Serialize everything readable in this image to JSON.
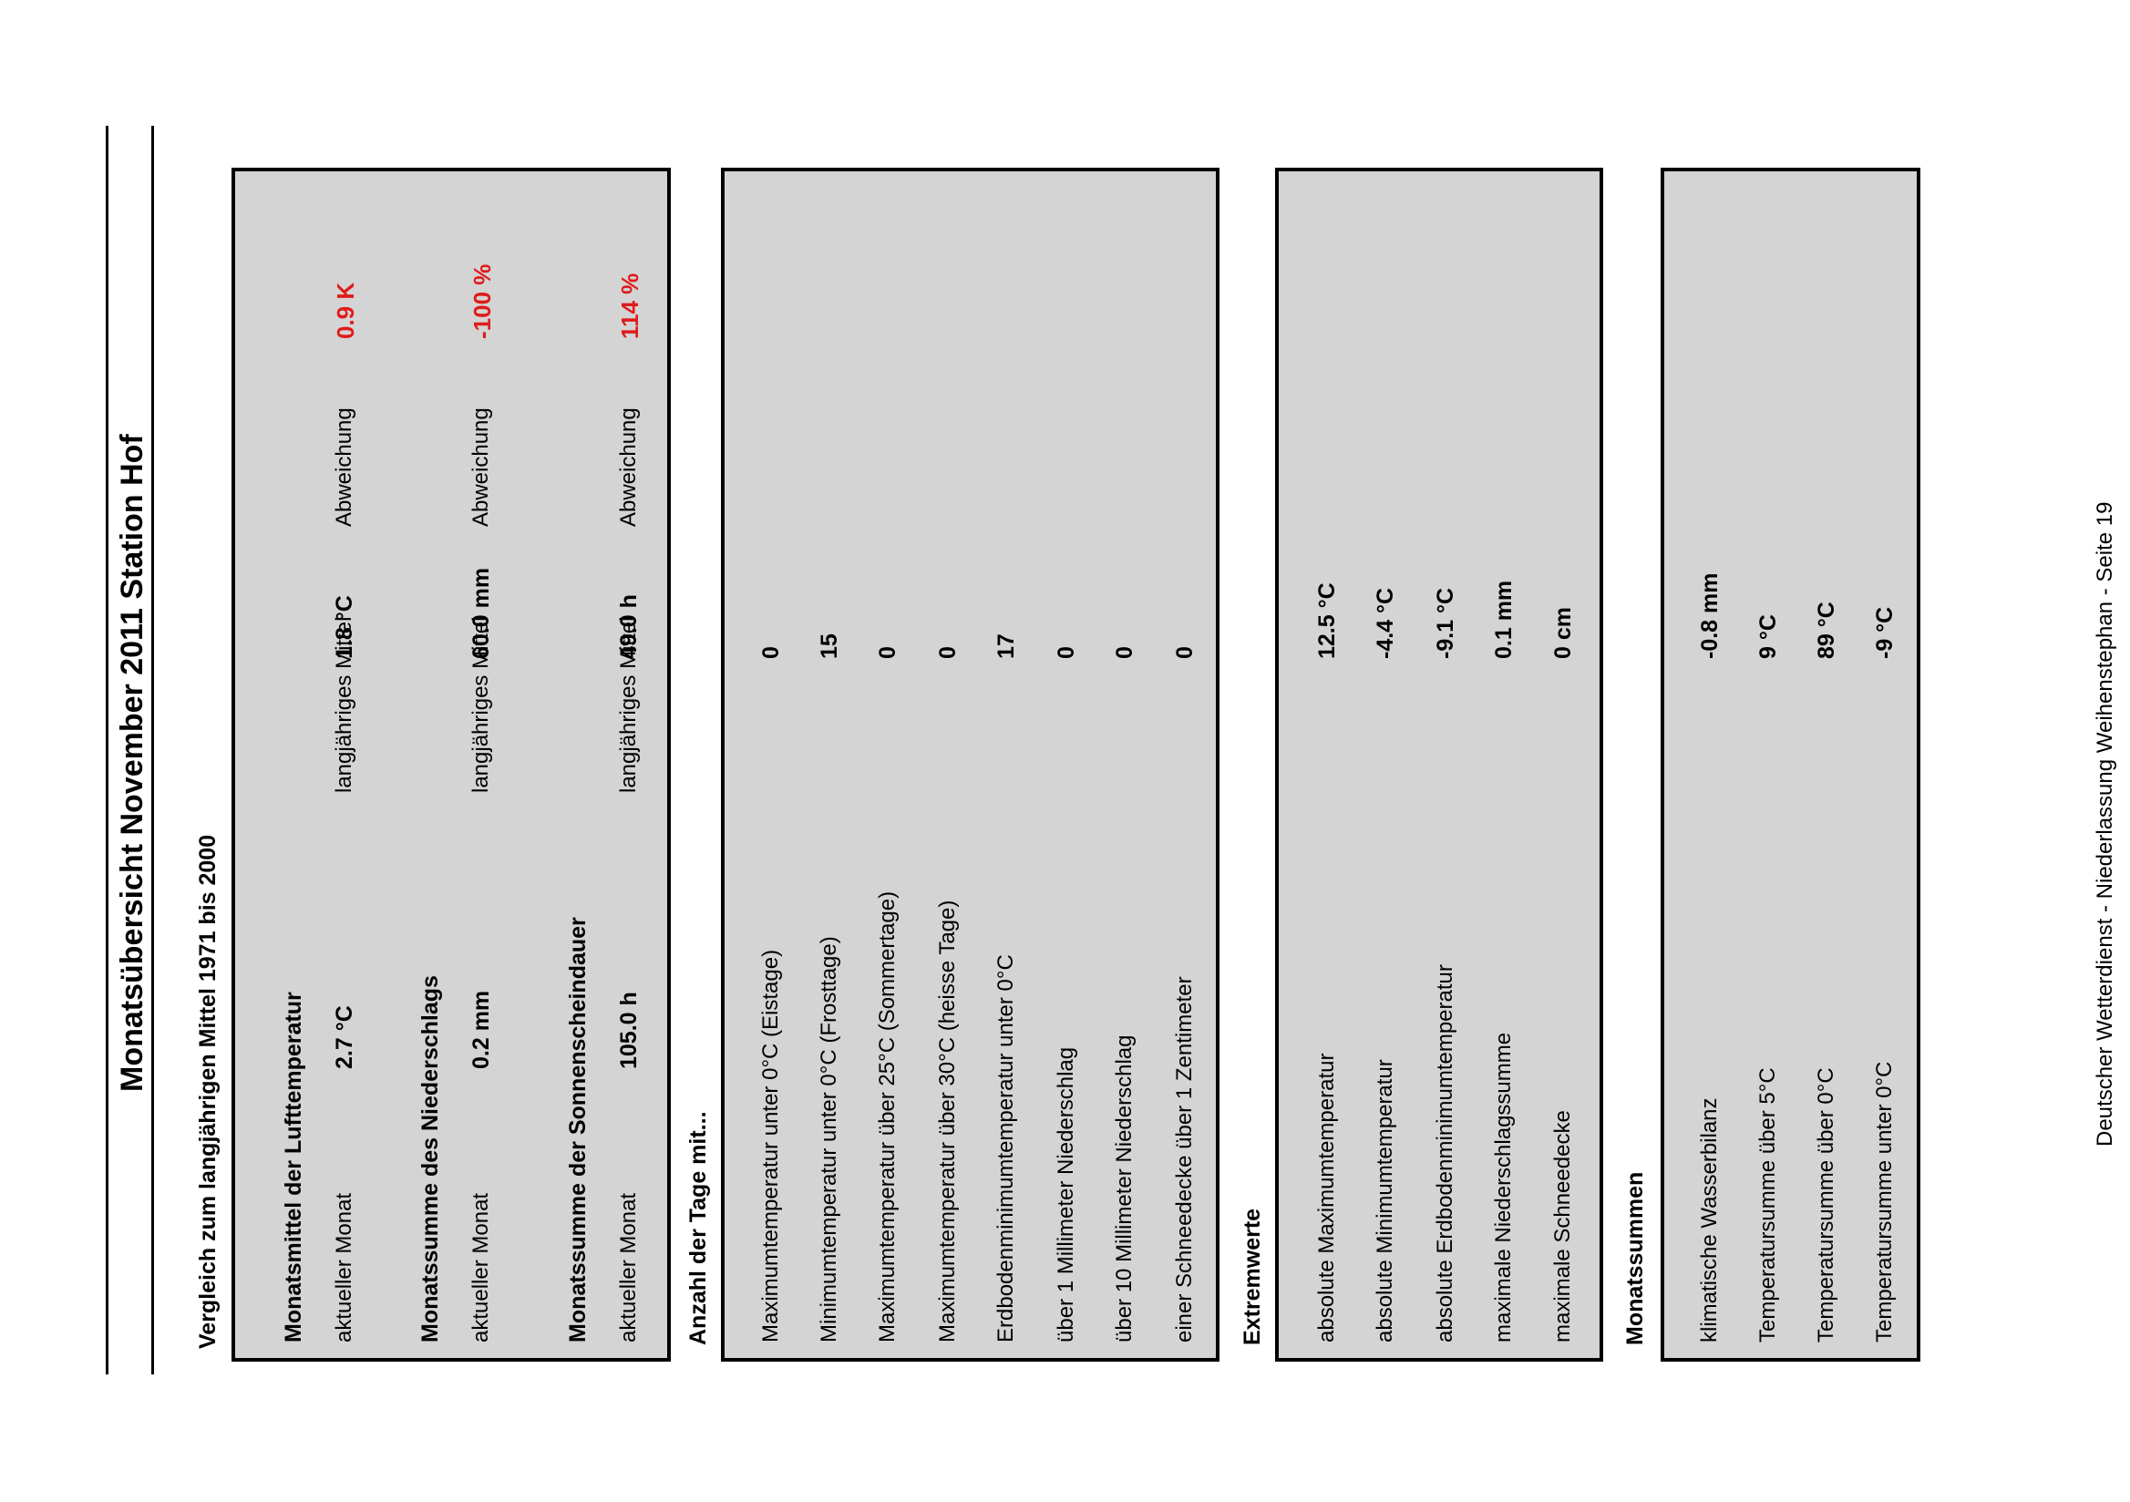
{
  "title": "Monatsübersicht November 2011 Station Hof",
  "comparison_heading": "Vergleich zum langjährigen Mittel 1971 bis 2000",
  "comparison": [
    {
      "heading": "Monatsmittel der Lufttemperatur",
      "current_label": "aktueller Monat",
      "current_value": "2.7 °C",
      "mean_label": "langjähriges Mittel",
      "mean_value": "1.8 °C",
      "deviation_label": "Abweichung",
      "deviation_value": "0.9  K"
    },
    {
      "heading": "Monatssumme des Niederschlags",
      "current_label": "aktueller Monat",
      "current_value": "0.2 mm",
      "mean_label": "langjähriges Mittel",
      "mean_value": "60.0 mm",
      "deviation_label": "Abweichung",
      "deviation_value": "-100 %"
    },
    {
      "heading": "Monatssumme der Sonnenscheindauer",
      "current_label": "aktueller Monat",
      "current_value": "105.0 h",
      "mean_label": "langjähriges Mittel",
      "mean_value": "49.0 h",
      "deviation_label": "Abweichung",
      "deviation_value": "114 %"
    }
  ],
  "days": {
    "heading": "Anzahl der Tage mit...",
    "rows": [
      {
        "label": "Maximumtemperatur unter 0°C (Eistage)",
        "value": "0"
      },
      {
        "label": "Minimumtemperatur unter 0°C (Frosttage)",
        "value": "15"
      },
      {
        "label": "Maximumtemperatur über 25°C (Sommertage)",
        "value": "0"
      },
      {
        "label": "Maximumtemperatur über 30°C (heisse Tage)",
        "value": "0"
      },
      {
        "label": "Erdbodenminimumtemperatur unter 0°C",
        "value": "17"
      },
      {
        "label": "über 1 Millimeter Niederschlag",
        "value": "0"
      },
      {
        "label": "über 10 Millimeter Niederschlag",
        "value": "0"
      },
      {
        "label": "einer Schneedecke über 1 Zentimeter",
        "value": "0"
      }
    ]
  },
  "extremes": {
    "heading": "Extremwerte",
    "rows": [
      {
        "label": "absolute Maximumtemperatur",
        "value": "12.5  °C"
      },
      {
        "label": "absolute Minimumtemperatur",
        "value": "-4.4  °C"
      },
      {
        "label": "absolute Erdbodenminimumtemperatur",
        "value": "-9.1  °C"
      },
      {
        "label": "maximale Niederschlagssumme",
        "value": "0.1  mm"
      },
      {
        "label": "maximale Schneedecke",
        "value": "0 cm"
      }
    ]
  },
  "sums": {
    "heading": "Monatssummen",
    "rows": [
      {
        "label": "klimatische Wasserbilanz",
        "value": "-0.8  mm"
      },
      {
        "label": "Temperatursumme über 5°C",
        "value": "9  °C"
      },
      {
        "label": "Temperatursumme über 0°C",
        "value": "89  °C"
      },
      {
        "label": "Temperatursumme unter 0°C",
        "value": "-9  °C"
      }
    ]
  },
  "footer": "Deutscher Wetterdienst - Niederlassung Weihenstephan - Seite 19",
  "colors": {
    "box_fill": "#d4d4d4",
    "deviation_text": "#e01b1b"
  }
}
